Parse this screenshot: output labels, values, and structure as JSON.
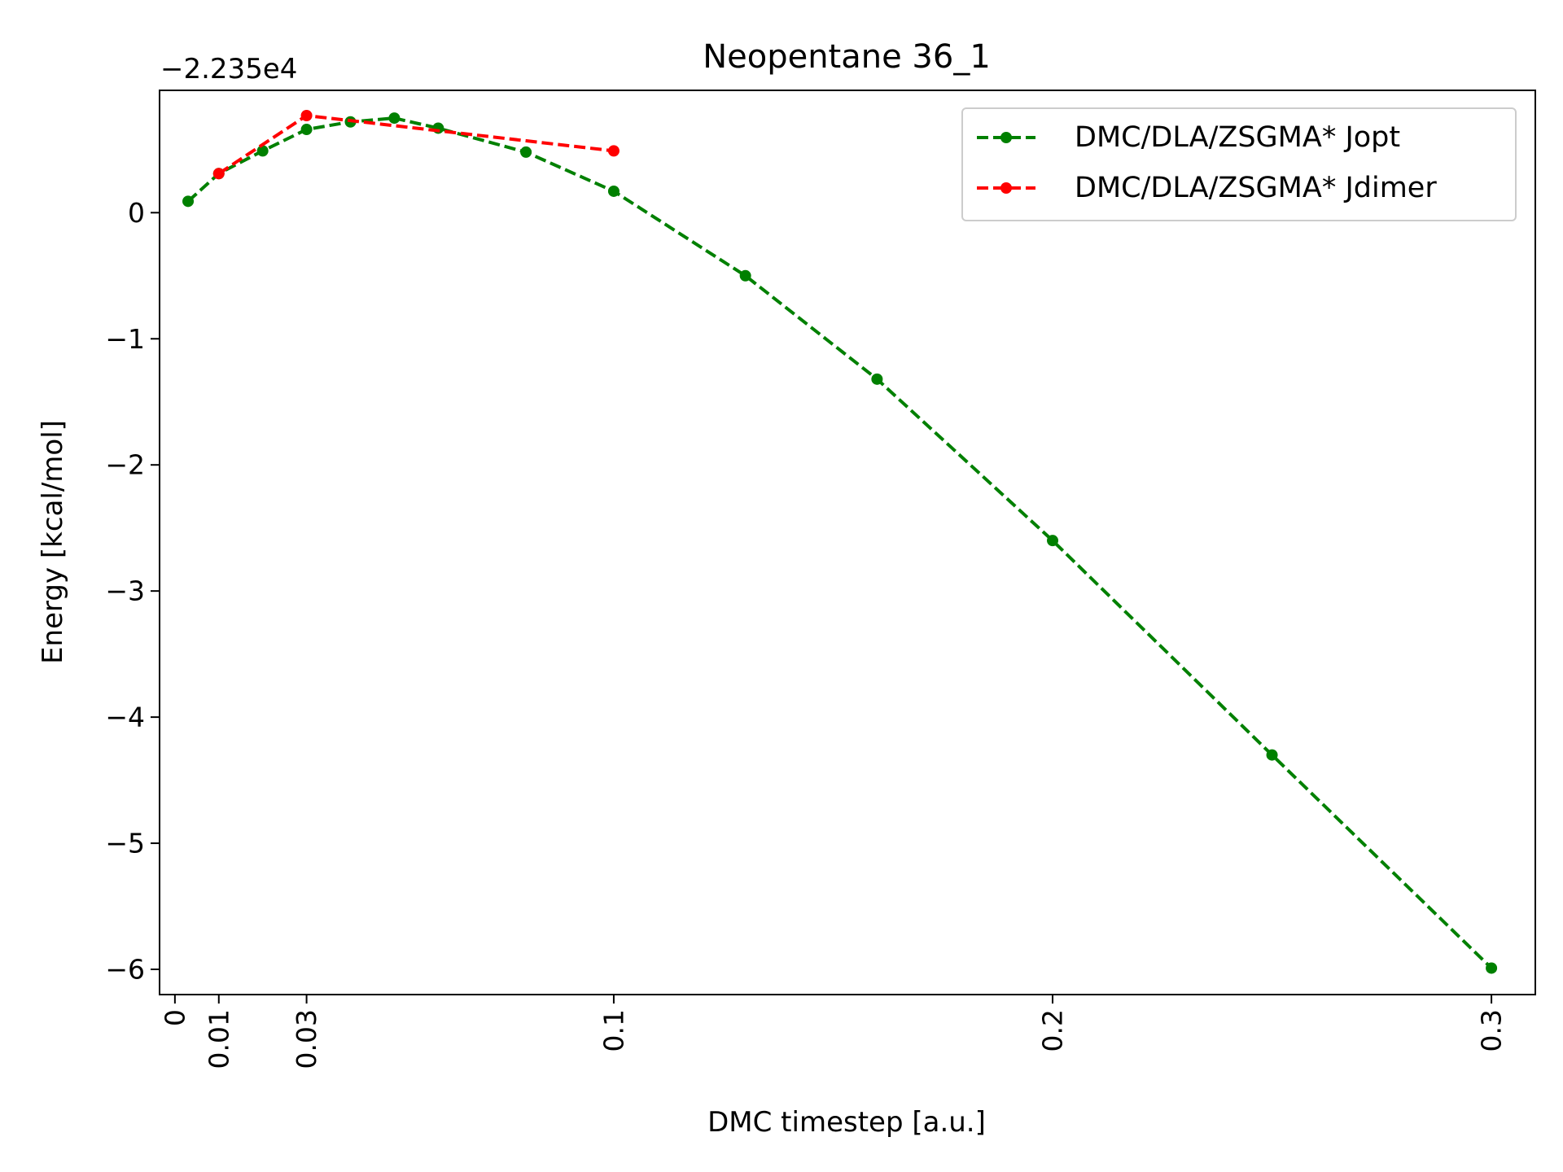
{
  "chart_data": {
    "type": "line",
    "title": "Neopentane 36_1",
    "xlabel": "DMC timestep [a.u.]",
    "ylabel": "Energy [kcal/mol]",
    "y_offset_label": "−2.235e4",
    "xlim": [
      -0.0035,
      0.31
    ],
    "ylim": [
      -6.2,
      0.97
    ],
    "x_ticks": [
      {
        "value": 0,
        "label": "0"
      },
      {
        "value": 0.01,
        "label": "0.01"
      },
      {
        "value": 0.03,
        "label": "0.03"
      },
      {
        "value": 0.1,
        "label": "0.1"
      },
      {
        "value": 0.2,
        "label": "0.2"
      },
      {
        "value": 0.3,
        "label": "0.3"
      }
    ],
    "y_ticks": [
      {
        "value": 0,
        "label": "0"
      },
      {
        "value": -1,
        "label": "−1"
      },
      {
        "value": -2,
        "label": "−2"
      },
      {
        "value": -3,
        "label": "−3"
      },
      {
        "value": -4,
        "label": "−4"
      },
      {
        "value": -5,
        "label": "−5"
      },
      {
        "value": -6,
        "label": "−6"
      }
    ],
    "grid": false,
    "legend_position": "top-right",
    "series": [
      {
        "name": "DMC/DLA/ZSGMA* Jopt",
        "color": "#008000",
        "line_style": "dashed",
        "marker": "circle",
        "x": [
          0.003,
          0.01,
          0.02,
          0.03,
          0.04,
          0.05,
          0.06,
          0.08,
          0.1,
          0.13,
          0.16,
          0.2,
          0.25,
          0.3
        ],
        "y": [
          0.09,
          0.31,
          0.49,
          0.66,
          0.72,
          0.75,
          0.67,
          0.48,
          0.17,
          -0.5,
          -1.32,
          -2.6,
          -4.3,
          -5.99
        ]
      },
      {
        "name": "DMC/DLA/ZSGMA* Jdimer",
        "color": "#ff0000",
        "line_style": "dashed",
        "marker": "circle",
        "x": [
          0.01,
          0.03,
          0.1
        ],
        "y": [
          0.31,
          0.77,
          0.49
        ]
      }
    ]
  }
}
